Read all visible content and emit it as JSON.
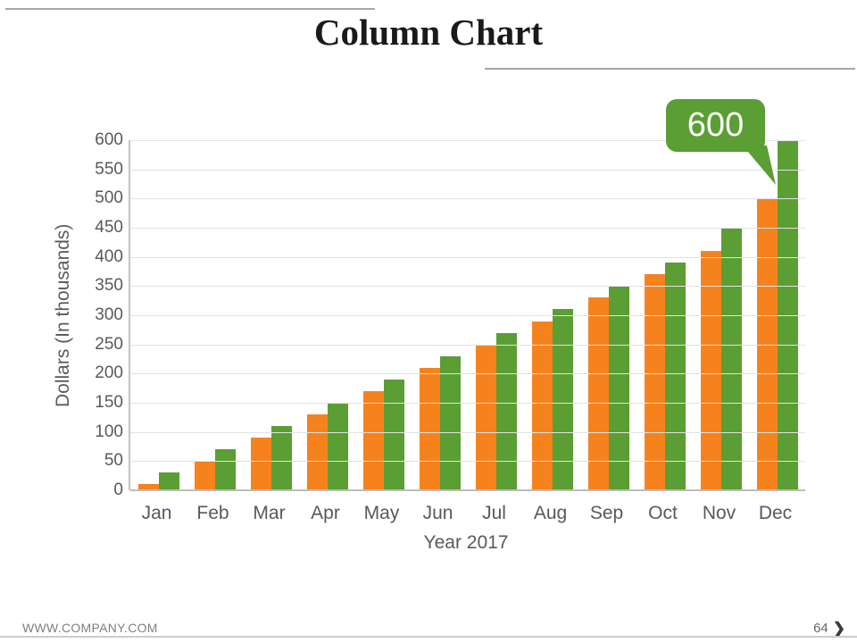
{
  "slide": {
    "title": "Column Chart",
    "footer": {
      "website": "WWW.COMPANY.COM",
      "page_number": "64",
      "chevron_icon": "❯"
    }
  },
  "chart_data": {
    "type": "bar",
    "title": "Column Chart",
    "categories": [
      "Jan",
      "Feb",
      "Mar",
      "Apr",
      "May",
      "Jun",
      "Jul",
      "Aug",
      "Sep",
      "Oct",
      "Nov",
      "Dec"
    ],
    "series": [
      {
        "name": "orange-series",
        "color": "#F6821E",
        "values": [
          10,
          50,
          90,
          130,
          170,
          210,
          250,
          290,
          330,
          370,
          410,
          500
        ]
      },
      {
        "name": "green-series",
        "color": "#5B9E33",
        "values": [
          30,
          70,
          110,
          150,
          190,
          230,
          270,
          310,
          350,
          390,
          450,
          600
        ]
      }
    ],
    "xlabel": "Year 2017",
    "ylabel": "Dollars (In thousands)",
    "ylim": [
      0,
      600
    ],
    "y_ticks": [
      0,
      50,
      100,
      150,
      200,
      250,
      300,
      350,
      400,
      450,
      500,
      550,
      600
    ],
    "grid": true,
    "legend": "none",
    "annotation": {
      "text": "600",
      "target_category": "Dec",
      "target_series": "green-series",
      "bubble_color": "#5B9E33",
      "text_color": "#FFFFFF"
    }
  },
  "colors": {
    "bar_orange": "#F6821E",
    "bar_green": "#5B9E33",
    "grid_line": "#E2E2E2",
    "axis_line": "#C3C3C3",
    "axis_text": "#595959",
    "title_text": "#1A1A1A",
    "footer_text": "#7F7F7F",
    "decorative_line": "#A6A6A6"
  }
}
